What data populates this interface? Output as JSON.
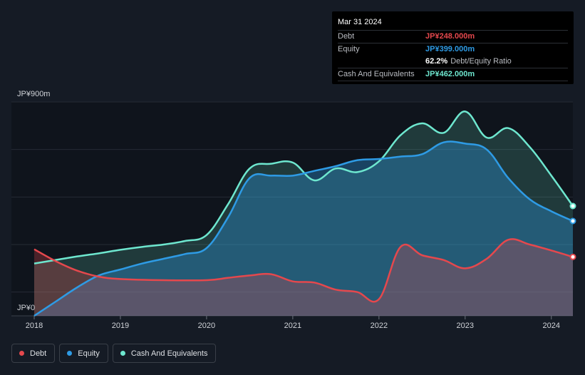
{
  "tooltip": {
    "date": "Mar 31 2024",
    "debt_label": "Debt",
    "debt_value": "JP¥248.000m",
    "equity_label": "Equity",
    "equity_value": "JP¥399.000m",
    "ratio_value": "62.2%",
    "ratio_label": "Debt/Equity Ratio",
    "cash_label": "Cash And Equivalents",
    "cash_value": "JP¥462.000m"
  },
  "legend": [
    {
      "label": "Debt",
      "color": "#e5484d"
    },
    {
      "label": "Equity",
      "color": "#2e9be5"
    },
    {
      "label": "Cash And Equivalents",
      "color": "#6ee7cf"
    }
  ],
  "chart_data": {
    "type": "area",
    "y_top_label": "JP¥900m",
    "y_bottom_label": "JP¥0",
    "ylim": [
      0,
      900
    ],
    "xlim": [
      2018,
      2024.25
    ],
    "x_ticks": [
      "2018",
      "2019",
      "2020",
      "2021",
      "2022",
      "2023",
      "2024"
    ],
    "series": [
      {
        "name": "Debt",
        "color": "#e5484d",
        "x": [
          2018,
          2018.25,
          2018.5,
          2018.75,
          2019,
          2019.5,
          2020,
          2020.25,
          2020.5,
          2020.75,
          2021,
          2021.25,
          2021.5,
          2021.75,
          2022,
          2022.25,
          2022.5,
          2022.75,
          2023,
          2023.25,
          2023.5,
          2023.75,
          2024,
          2024.25
        ],
        "values": [
          280,
          230,
          190,
          165,
          155,
          150,
          150,
          160,
          170,
          175,
          145,
          140,
          110,
          100,
          70,
          290,
          255,
          235,
          200,
          240,
          320,
          300,
          275,
          248
        ]
      },
      {
        "name": "Equity",
        "color": "#2e9be5",
        "x": [
          2018,
          2018.25,
          2018.5,
          2018.75,
          2019,
          2019.25,
          2019.5,
          2019.75,
          2020,
          2020.25,
          2020.5,
          2020.75,
          2021,
          2021.25,
          2021.5,
          2021.75,
          2022,
          2022.25,
          2022.5,
          2022.75,
          2023,
          2023.25,
          2023.5,
          2023.75,
          2024,
          2024.25
        ],
        "values": [
          0,
          60,
          120,
          170,
          195,
          220,
          240,
          260,
          285,
          415,
          580,
          590,
          590,
          610,
          630,
          655,
          660,
          670,
          680,
          730,
          725,
          700,
          580,
          490,
          440,
          399
        ]
      },
      {
        "name": "Cash And Equivalents",
        "color": "#6ee7cf",
        "x": [
          2018,
          2018.25,
          2018.5,
          2018.75,
          2019,
          2019.25,
          2019.5,
          2019.75,
          2020,
          2020.25,
          2020.5,
          2020.75,
          2021,
          2021.25,
          2021.5,
          2021.75,
          2022,
          2022.25,
          2022.5,
          2022.75,
          2023,
          2023.25,
          2023.5,
          2023.75,
          2024,
          2024.25
        ],
        "values": [
          220,
          235,
          250,
          263,
          278,
          290,
          300,
          315,
          340,
          470,
          620,
          640,
          645,
          570,
          620,
          605,
          650,
          760,
          810,
          770,
          860,
          750,
          790,
          710,
          590,
          462
        ]
      }
    ]
  }
}
